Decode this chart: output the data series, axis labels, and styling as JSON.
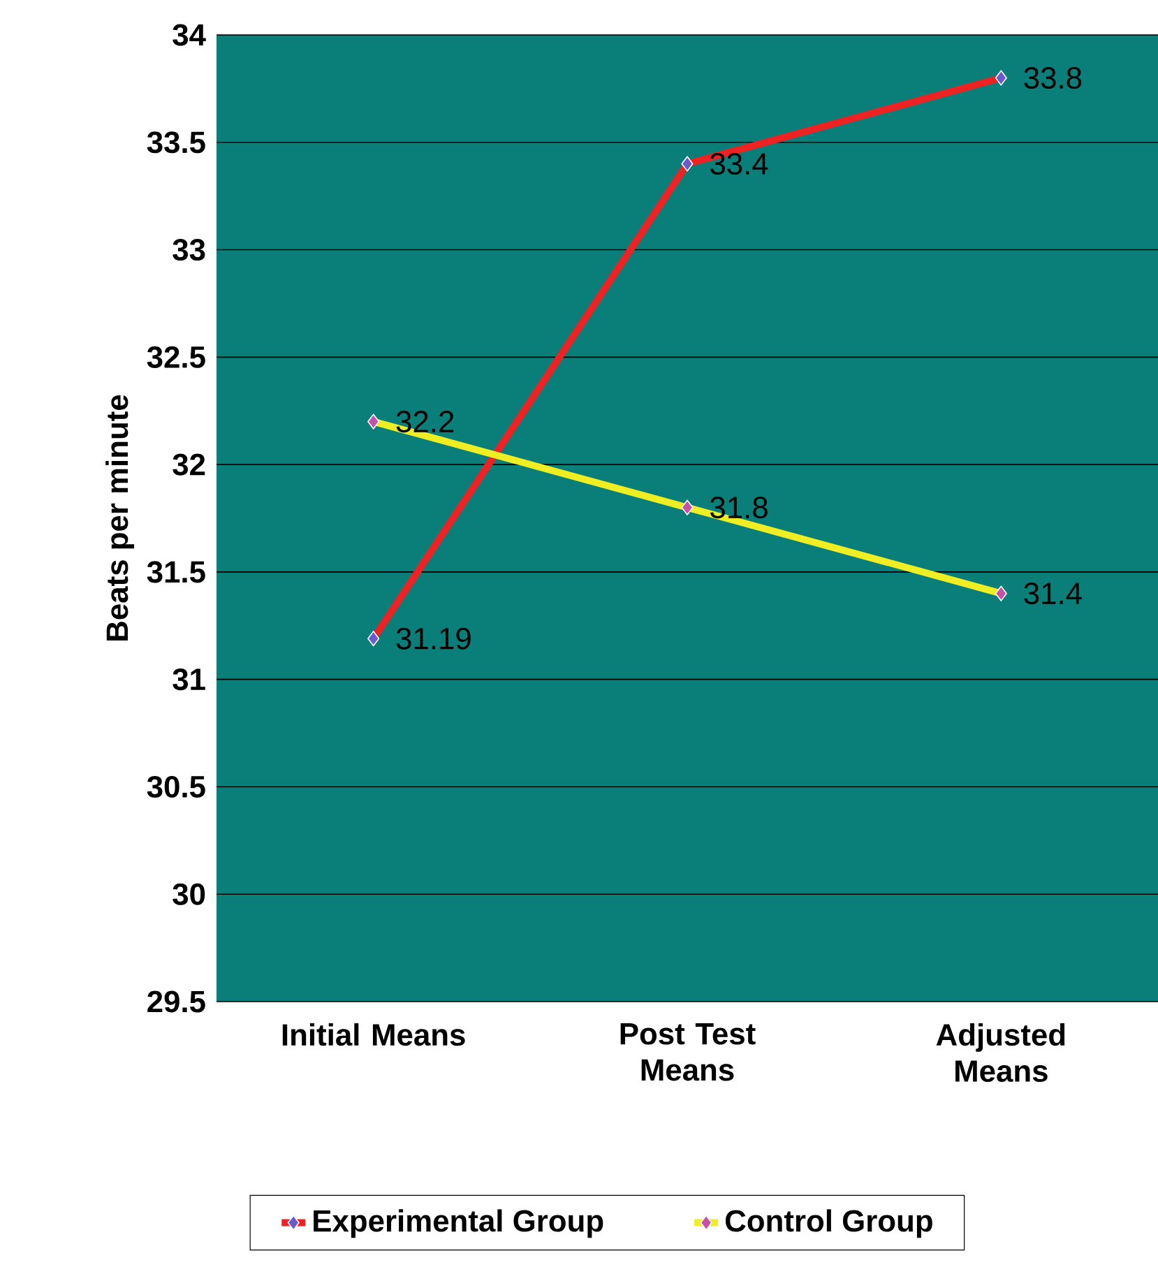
{
  "chart_data": {
    "type": "line",
    "ylabel": "Beats per minute",
    "categories": [
      "Initial Means",
      "Post Test Means",
      "Adjusted Means"
    ],
    "series": [
      {
        "name": "Experimental Group",
        "color": "#ee2222",
        "values": [
          31.19,
          33.4,
          33.8
        ]
      },
      {
        "name": "Control Group",
        "color": "#eeee22",
        "values": [
          32.2,
          31.8,
          31.4
        ]
      }
    ],
    "ylim": [
      29.5,
      34
    ],
    "yticks": [
      29.5,
      30,
      30.5,
      31,
      31.5,
      32,
      32.5,
      33,
      33.5,
      34
    ],
    "grid": "y",
    "legend": "bottom",
    "marker": "diamond",
    "data_labels": true
  }
}
